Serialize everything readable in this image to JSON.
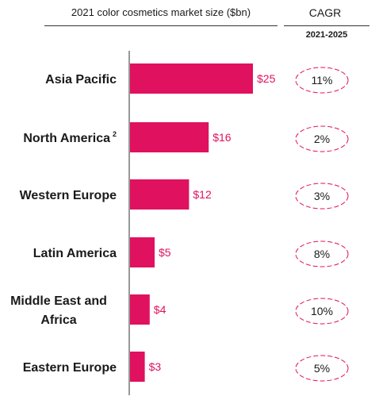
{
  "header": {
    "title": "2021 color cosmetics market size ($bn)",
    "cagr_title": "CAGR",
    "cagr_period": "2021-2025"
  },
  "chart_data": {
    "type": "bar",
    "orientation": "horizontal",
    "title": "2021 color cosmetics market size ($bn)",
    "categories": [
      "Asia Pacific",
      "North America",
      "Western Europe",
      "Latin America",
      "Middle East and Africa",
      "Eastern Europe"
    ],
    "category_footnotes": [
      "",
      "2",
      "",
      "",
      "",
      ""
    ],
    "values": [
      25,
      16,
      12,
      5,
      4,
      3
    ],
    "value_labels": [
      "$25",
      "$16",
      "$12",
      "$5",
      "$4",
      "$3"
    ],
    "cagr_header": "CAGR",
    "cagr_period": "2021-2025",
    "cagr": [
      "11%",
      "2%",
      "3%",
      "8%",
      "10%",
      "5%"
    ],
    "xlim": [
      0,
      25
    ],
    "grid": false,
    "legend": "none",
    "colors": {
      "bar": "#e0115f",
      "value_label": "#e0115f",
      "cagr_outline": "#e0115f"
    }
  }
}
